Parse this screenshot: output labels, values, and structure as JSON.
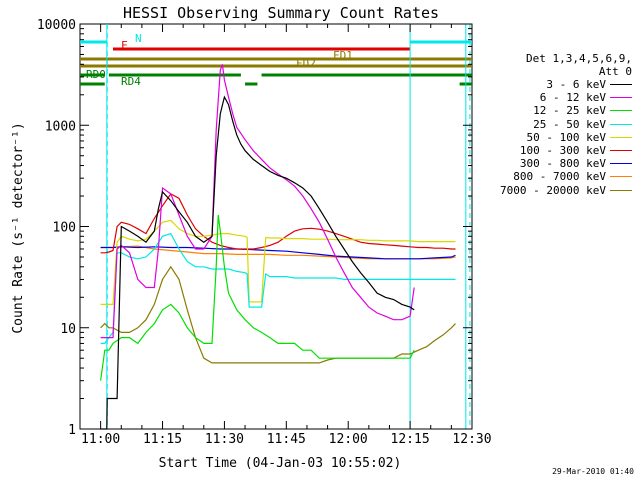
{
  "chart_data": {
    "type": "line",
    "title": "HESSI Observing Summary Count Rates",
    "xlabel": "Start Time (04-Jan-03 10:55:02)",
    "ylabel": "Count Rate (s⁻¹ detector⁻¹)",
    "yscale": "log",
    "ylim": [
      1,
      10000
    ],
    "xlim_min": [
      0,
      95
    ],
    "x_tick_labels": [
      "11:00",
      "11:15",
      "11:30",
      "11:45",
      "12:00",
      "12:15",
      "12:30"
    ],
    "x_tick_min": [
      5,
      20,
      35,
      50,
      65,
      80,
      95
    ],
    "y_tick_labels": [
      "1",
      "10",
      "100",
      "1000",
      "10000"
    ],
    "y_tick_values": [
      1,
      10,
      100,
      1000,
      10000
    ],
    "legend": {
      "header1": "Det 1,3,4,5,6,9,",
      "header2": "Att 0",
      "entries": [
        {
          "label": "3 - 6 keV",
          "color": "#000000"
        },
        {
          "label": "6 - 12 keV",
          "color": "#e000e0"
        },
        {
          "label": "12 - 25 keV",
          "color": "#00e000"
        },
        {
          "label": "25 - 50 keV",
          "color": "#00e8e8"
        },
        {
          "label": "50 - 100 keV",
          "color": "#d8d800"
        },
        {
          "label": "100 - 300 keV",
          "color": "#e00000"
        },
        {
          "label": "300 - 800 keV",
          "color": "#0000e0"
        },
        {
          "label": "800 - 7000 keV",
          "color": "#ff8000"
        },
        {
          "label": "7000 - 20000 keV",
          "color": "#8b7a00"
        }
      ]
    },
    "series": [
      {
        "name": "3 - 6 keV",
        "color": "#000000",
        "x": [
          5,
          6.5,
          6.6,
          8,
          9,
          10,
          12,
          14,
          16,
          18,
          19,
          20,
          22,
          24,
          26,
          28,
          30,
          32,
          33,
          34,
          35,
          36,
          37,
          38,
          39,
          40,
          42,
          44,
          46,
          48,
          50,
          52,
          54,
          56,
          58,
          60,
          62,
          64,
          66,
          68,
          70,
          72,
          74,
          76,
          78,
          80,
          81
        ],
        "y": [
          1,
          1,
          2,
          2,
          2,
          100,
          90,
          80,
          70,
          90,
          150,
          220,
          180,
          140,
          110,
          80,
          70,
          80,
          500,
          1300,
          1900,
          1600,
          1100,
          800,
          650,
          560,
          460,
          400,
          350,
          320,
          300,
          270,
          240,
          200,
          150,
          110,
          80,
          60,
          45,
          35,
          28,
          22,
          20,
          19,
          17,
          16,
          15
        ]
      },
      {
        "name": "6 - 12 keV",
        "color": "#e000e0",
        "x": [
          5,
          8,
          9,
          10,
          12,
          14,
          16,
          18,
          19,
          20,
          22,
          24,
          26,
          28,
          30,
          32,
          33,
          34,
          34.5,
          35,
          36,
          37,
          38,
          40,
          42,
          44,
          46,
          48,
          50,
          52,
          54,
          56,
          58,
          60,
          62,
          64,
          66,
          68,
          70,
          72,
          74,
          76,
          78,
          80,
          81
        ],
        "y": [
          8,
          8,
          60,
          65,
          55,
          30,
          25,
          25,
          60,
          240,
          210,
          130,
          80,
          60,
          60,
          80,
          900,
          3500,
          4000,
          2800,
          1900,
          1300,
          950,
          720,
          560,
          460,
          380,
          330,
          290,
          250,
          200,
          150,
          110,
          75,
          50,
          35,
          25,
          20,
          16,
          14,
          13,
          12,
          12,
          13,
          25
        ]
      },
      {
        "name": "12 - 25 keV",
        "color": "#00e000",
        "x": [
          5,
          6,
          7,
          8,
          10,
          12,
          14,
          16,
          18,
          20,
          22,
          24,
          26,
          28,
          30,
          32,
          33,
          33.5,
          34,
          35,
          36,
          38,
          40,
          42,
          44,
          46,
          48,
          50,
          52,
          54,
          56,
          58,
          60,
          62,
          64,
          66,
          68,
          70,
          72,
          74,
          76,
          78,
          80,
          81
        ],
        "y": [
          3,
          6,
          6,
          7,
          8,
          8,
          7,
          9,
          11,
          15,
          17,
          14,
          10,
          8,
          7,
          7,
          40,
          130,
          90,
          40,
          22,
          15,
          12,
          10,
          9,
          8,
          7,
          7,
          7,
          6,
          6,
          5,
          5,
          5,
          5,
          5,
          5,
          5,
          5,
          5,
          5,
          5,
          5,
          6
        ]
      },
      {
        "name": "25 - 50 keV",
        "color": "#00e8e8",
        "x": [
          5,
          6,
          7,
          8,
          9,
          10,
          12,
          14,
          16,
          18,
          20,
          22,
          24,
          26,
          28,
          30,
          32,
          34,
          36,
          38,
          40,
          40.5,
          41,
          44,
          45,
          46,
          48,
          50,
          52,
          54,
          56,
          58,
          60,
          62,
          64,
          66,
          68,
          70,
          72,
          74,
          76,
          78,
          80,
          82,
          84,
          86,
          88,
          90,
          91
        ],
        "y": [
          7,
          7,
          8,
          9,
          55,
          55,
          50,
          48,
          50,
          60,
          80,
          85,
          60,
          45,
          40,
          40,
          38,
          38,
          38,
          36,
          35,
          34,
          16,
          16,
          34,
          32,
          32,
          32,
          31,
          31,
          31,
          31,
          31,
          31,
          30,
          30,
          30,
          30,
          30,
          30,
          30,
          30,
          30,
          30,
          30,
          30,
          30,
          30,
          30
        ]
      },
      {
        "name": "50 - 100 keV",
        "color": "#d8d800",
        "x": [
          5,
          6,
          7,
          8,
          9,
          10,
          12,
          14,
          16,
          18,
          20,
          22,
          24,
          26,
          28,
          30,
          32,
          34,
          36,
          38,
          40,
          40.5,
          41,
          44,
          45,
          46,
          48,
          50,
          52,
          54,
          56,
          58,
          60,
          62,
          64,
          66,
          68,
          70,
          72,
          74,
          76,
          78,
          80,
          82,
          84,
          86,
          88,
          90,
          91
        ],
        "y": [
          17,
          17,
          17,
          17,
          70,
          80,
          75,
          72,
          75,
          90,
          110,
          115,
          95,
          85,
          80,
          80,
          82,
          85,
          85,
          82,
          80,
          78,
          18,
          18,
          78,
          77,
          77,
          76,
          76,
          76,
          75,
          75,
          75,
          74,
          74,
          74,
          74,
          73,
          73,
          72,
          72,
          72,
          72,
          71,
          71,
          71,
          71,
          71,
          71
        ]
      },
      {
        "name": "100 - 300 keV",
        "color": "#e00000",
        "x": [
          5,
          6,
          7,
          8,
          9,
          10,
          12,
          14,
          16,
          18,
          20,
          22,
          24,
          26,
          28,
          30,
          32,
          34,
          36,
          38,
          40,
          42,
          44,
          46,
          48,
          50,
          52,
          54,
          56,
          58,
          60,
          62,
          64,
          66,
          68,
          70,
          72,
          74,
          76,
          78,
          80,
          82,
          84,
          86,
          88,
          90,
          91
        ],
        "y": [
          55,
          55,
          56,
          58,
          100,
          110,
          105,
          95,
          85,
          120,
          160,
          210,
          190,
          130,
          95,
          80,
          70,
          65,
          62,
          60,
          60,
          60,
          62,
          65,
          70,
          80,
          90,
          95,
          96,
          94,
          90,
          85,
          80,
          75,
          70,
          68,
          67,
          66,
          65,
          64,
          63,
          62,
          62,
          61,
          61,
          60,
          60
        ]
      },
      {
        "name": "300 - 800 keV",
        "color": "#0000e0",
        "x": [
          5,
          8,
          10,
          14,
          18,
          22,
          26,
          30,
          34,
          38,
          42,
          46,
          50,
          54,
          58,
          62,
          66,
          70,
          74,
          78,
          82,
          86,
          90,
          91
        ],
        "y": [
          62,
          62,
          63,
          62,
          63,
          62,
          62,
          61,
          60,
          60,
          59,
          58,
          57,
          55,
          53,
          51,
          50,
          49,
          48,
          48,
          48,
          49,
          50,
          52
        ]
      },
      {
        "name": "800 - 7000 keV",
        "color": "#ff8000",
        "x": [
          5,
          8,
          10,
          14,
          18,
          22,
          26,
          30,
          34,
          38,
          42,
          46,
          50,
          54,
          58,
          62,
          66,
          70,
          74,
          78,
          82,
          86,
          90,
          91
        ],
        "y": [
          62,
          62,
          63,
          64,
          60,
          58,
          56,
          54,
          54,
          53,
          53,
          53,
          52,
          52,
          51,
          50,
          49,
          48,
          48,
          48,
          48,
          48,
          49,
          50
        ]
      },
      {
        "name": "7000 - 20000 keV",
        "color": "#8b7a00",
        "x": [
          5,
          6,
          7,
          8,
          10,
          12,
          14,
          16,
          18,
          20,
          22,
          24,
          26,
          28,
          30,
          32,
          34,
          36,
          38,
          40,
          42,
          44,
          46,
          48,
          50,
          52,
          54,
          56,
          58,
          60,
          62,
          64,
          66,
          68,
          70,
          72,
          74,
          76,
          78,
          80,
          82,
          84,
          86,
          88,
          90,
          91
        ],
        "y": [
          10,
          11,
          10,
          10,
          9,
          9,
          10,
          12,
          17,
          30,
          40,
          30,
          15,
          8,
          5,
          4.5,
          4.5,
          4.5,
          4.5,
          4.5,
          4.5,
          4.5,
          4.5,
          4.5,
          4.5,
          4.5,
          4.5,
          4.5,
          4.5,
          4.8,
          5,
          5,
          5,
          5,
          5,
          5,
          5,
          5,
          5.5,
          5.5,
          6,
          6.5,
          7.5,
          8.5,
          10,
          11
        ]
      }
    ],
    "flag_bars": [
      {
        "label": "N",
        "color": "#00e8e8",
        "segments": [
          [
            0,
            6.5
          ],
          [
            80,
            95
          ]
        ]
      },
      {
        "label": "F",
        "color": "#e00000",
        "segments": [
          [
            8,
            80
          ]
        ]
      },
      {
        "label": "FD1",
        "color": "#8b7a00",
        "segments": [
          [
            0,
            95
          ]
        ]
      },
      {
        "label": "FD2",
        "color": "#8b7a00",
        "segments": [
          [
            0,
            95
          ]
        ]
      },
      {
        "label": "RD0",
        "color": "#008000",
        "segments": [
          [
            0,
            6
          ],
          [
            7,
            39
          ],
          [
            44,
            95
          ]
        ]
      },
      {
        "label": "RD4",
        "color": "#008000",
        "segments": [
          [
            0,
            6
          ],
          [
            40,
            43
          ],
          [
            92,
            95
          ]
        ]
      }
    ],
    "saa_markers_min": [
      6.5,
      80,
      93.5
    ],
    "night_markers_min": [
      6.6,
      94.5
    ]
  },
  "timestamp": "29-Mar-2010 01:40"
}
